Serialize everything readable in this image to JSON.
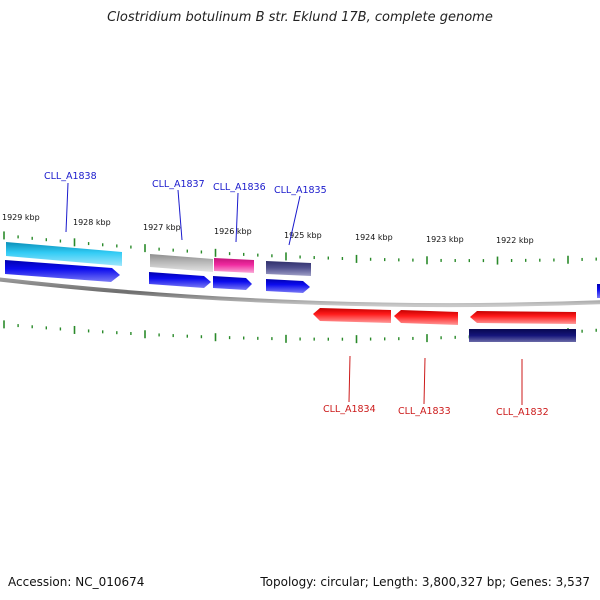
{
  "title": "Clostridium botulinum B str. Eklund 17B, complete genome",
  "footer": {
    "accession": "Accession: NC_010674",
    "info": "Topology: circular; Length: 3,800,327 bp; Genes: 3,537"
  },
  "colors": {
    "backbone": "#808080",
    "tick": "#2a8a2a",
    "forward_label": "#1a1acc",
    "reverse_label": "#cc1a1a",
    "cds_forward": "#0a0adc",
    "cds_reverse": "#ee1111",
    "feature_cyan": "#22bbee",
    "feature_gray": "#b0b0b0",
    "feature_pink": "#ee2299",
    "feature_slate": "#4a4a8a",
    "feature_navy": "#111177"
  },
  "scale_labels": [
    {
      "kbp": 1929,
      "text": "1929 kbp"
    },
    {
      "kbp": 1928,
      "text": "1928 kbp"
    },
    {
      "kbp": 1927,
      "text": "1927 kbp"
    },
    {
      "kbp": 1926,
      "text": "1926 kbp"
    },
    {
      "kbp": 1925,
      "text": "1925 kbp"
    },
    {
      "kbp": 1924,
      "text": "1924 kbp"
    },
    {
      "kbp": 1923,
      "text": "1923 kbp"
    },
    {
      "kbp": 1922,
      "text": "1922 kbp"
    }
  ],
  "genes": [
    {
      "name": "CLL_A1838",
      "strand": "+"
    },
    {
      "name": "CLL_A1837",
      "strand": "+"
    },
    {
      "name": "CLL_A1836",
      "strand": "+"
    },
    {
      "name": "CLL_A1835",
      "strand": "+"
    },
    {
      "name": "CLL_A1834",
      "strand": "-"
    },
    {
      "name": "CLL_A1833",
      "strand": "-"
    },
    {
      "name": "CLL_A1832",
      "strand": "-"
    }
  ]
}
